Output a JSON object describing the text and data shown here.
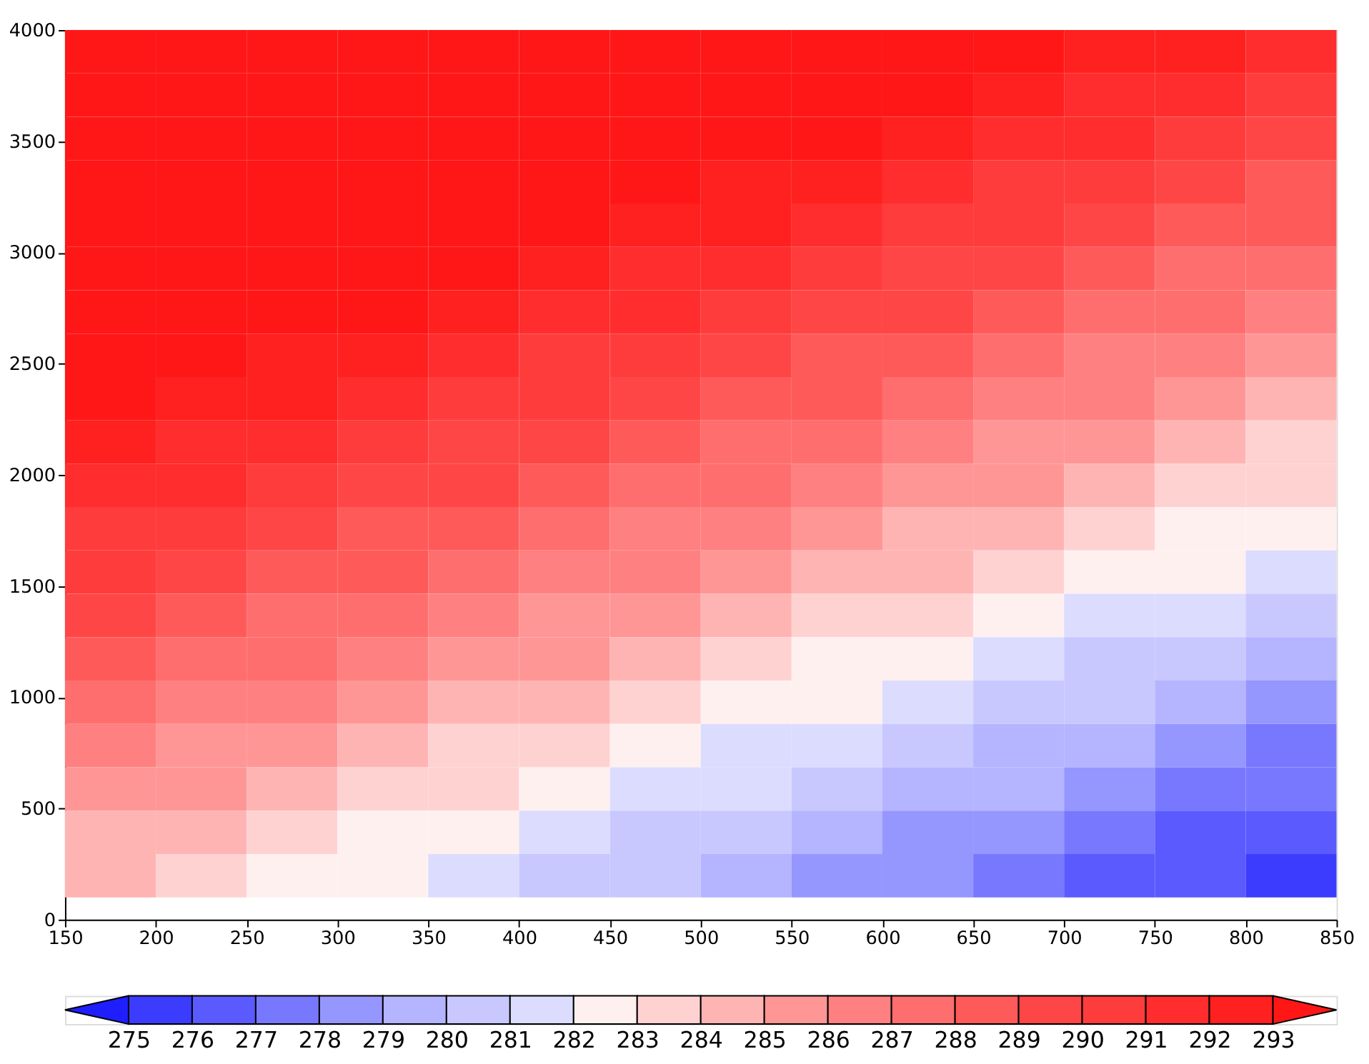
{
  "chart_data": {
    "type": "heatmap",
    "x": [
      175,
      225,
      275,
      325,
      375,
      425,
      475,
      525,
      575,
      625,
      675,
      725,
      775,
      825
    ],
    "y": [
      3902.5,
      3707.5,
      3512.5,
      3317.5,
      3122.5,
      2927.5,
      2732.5,
      2537.5,
      2342.5,
      2147.5,
      1952.5,
      1757.5,
      1562.5,
      1367.5,
      1172.5,
      977.5,
      782.5,
      587.5,
      392.5,
      197.5
    ],
    "cells": [
      [
        293.5,
        293.5,
        293.5,
        293.5,
        293.5,
        293.5,
        293.5,
        293.5,
        293.5,
        293.5,
        293.5,
        292.5,
        292.5,
        291.5
      ],
      [
        293.5,
        293.5,
        293.5,
        293.5,
        293.5,
        293.5,
        293.5,
        293.5,
        293.5,
        293.5,
        292.5,
        291.5,
        291.5,
        290.5
      ],
      [
        293.5,
        293.5,
        293.5,
        293.5,
        293.5,
        293.5,
        293.5,
        293.5,
        293.5,
        292.5,
        291.5,
        291.5,
        290.5,
        289.5
      ],
      [
        293.5,
        293.5,
        293.5,
        293.5,
        293.5,
        293.5,
        293.5,
        292.5,
        292.5,
        291.5,
        290.5,
        290.5,
        289.5,
        288.5
      ],
      [
        293.5,
        293.5,
        293.5,
        293.5,
        293.5,
        293.5,
        292.5,
        292.5,
        291.5,
        290.5,
        290.5,
        289.5,
        288.5,
        288.5
      ],
      [
        293.5,
        293.5,
        293.5,
        293.5,
        293.5,
        292.5,
        291.5,
        291.5,
        290.5,
        289.5,
        289.5,
        288.5,
        287.5,
        287.5
      ],
      [
        293.5,
        293.5,
        293.5,
        293.5,
        292.5,
        291.5,
        291.5,
        290.5,
        289.5,
        289.5,
        288.5,
        287.5,
        287.5,
        286.5
      ],
      [
        293.5,
        293.5,
        292.5,
        292.5,
        291.5,
        290.5,
        290.5,
        289.5,
        288.5,
        288.5,
        287.5,
        286.5,
        286.5,
        285.5
      ],
      [
        293.5,
        292.5,
        292.5,
        291.5,
        290.5,
        290.5,
        289.5,
        288.5,
        288.5,
        287.5,
        286.5,
        286.5,
        285.5,
        284.5
      ],
      [
        292.5,
        291.5,
        291.5,
        290.5,
        289.5,
        289.5,
        288.5,
        287.5,
        287.5,
        286.5,
        285.5,
        285.5,
        284.5,
        283.5
      ],
      [
        291.5,
        291.5,
        290.5,
        289.5,
        289.5,
        288.5,
        287.5,
        287.5,
        286.5,
        285.5,
        285.5,
        284.5,
        283.5,
        283.5
      ],
      [
        290.5,
        290.5,
        289.5,
        288.5,
        288.5,
        287.5,
        286.5,
        286.5,
        285.5,
        284.5,
        284.5,
        283.5,
        282.5,
        282.5
      ],
      [
        290.5,
        289.5,
        288.5,
        288.5,
        287.5,
        286.5,
        286.5,
        285.5,
        284.5,
        284.5,
        283.5,
        282.5,
        282.5,
        281.5
      ],
      [
        289.5,
        288.5,
        287.5,
        287.5,
        286.5,
        285.5,
        285.5,
        284.5,
        283.5,
        283.5,
        282.5,
        281.5,
        281.5,
        280.5
      ],
      [
        288.5,
        287.5,
        287.5,
        286.5,
        285.5,
        285.5,
        284.5,
        283.5,
        282.5,
        282.5,
        281.5,
        280.5,
        280.5,
        279.5
      ],
      [
        287.5,
        286.5,
        286.5,
        285.5,
        284.5,
        284.5,
        283.5,
        282.5,
        282.5,
        281.5,
        280.5,
        280.5,
        279.5,
        278.5
      ],
      [
        286.5,
        285.5,
        285.5,
        284.5,
        283.5,
        283.5,
        282.5,
        281.5,
        281.5,
        280.5,
        279.5,
        279.5,
        278.5,
        277.5
      ],
      [
        285.5,
        285.5,
        284.5,
        283.5,
        283.5,
        282.5,
        281.5,
        281.5,
        280.5,
        279.5,
        279.5,
        278.5,
        277.5,
        277.5
      ],
      [
        284.5,
        284.5,
        283.5,
        282.5,
        282.5,
        281.5,
        280.5,
        280.5,
        279.5,
        278.5,
        278.5,
        277.5,
        276.5,
        276.5
      ],
      [
        284.5,
        283.5,
        282.5,
        282.5,
        281.5,
        280.5,
        280.5,
        279.5,
        278.5,
        278.5,
        277.5,
        276.5,
        276.5,
        275.5
      ]
    ],
    "colors": [
      "#1e1eff",
      "#3c3cff",
      "#5a5aff",
      "#7878ff",
      "#9696ff",
      "#b4b4ff",
      "#c8c8ff",
      "#dcdcff",
      "#fff0f0",
      "#ffd2d2",
      "#ffb4b4",
      "#ff9696",
      "#ff8080",
      "#ff6e6e",
      "#ff5a5a",
      "#ff4646",
      "#ff3c3c",
      "#ff2d2d",
      "#ff2020",
      "#ff1717"
    ],
    "clim": [
      275,
      293
    ],
    "cticks": [
      275,
      276,
      277,
      278,
      279,
      280,
      281,
      282,
      283,
      284,
      285,
      286,
      287,
      288,
      289,
      290,
      291,
      292,
      293
    ],
    "xlim": [
      150,
      850
    ],
    "xticks": [
      150,
      200,
      250,
      300,
      350,
      400,
      450,
      500,
      550,
      600,
      650,
      700,
      750,
      800,
      850
    ],
    "ylim": [
      0,
      4000
    ],
    "yticks": [
      0,
      500,
      1000,
      1500,
      2000,
      2500,
      3000,
      3500,
      4000
    ],
    "grid": false
  }
}
